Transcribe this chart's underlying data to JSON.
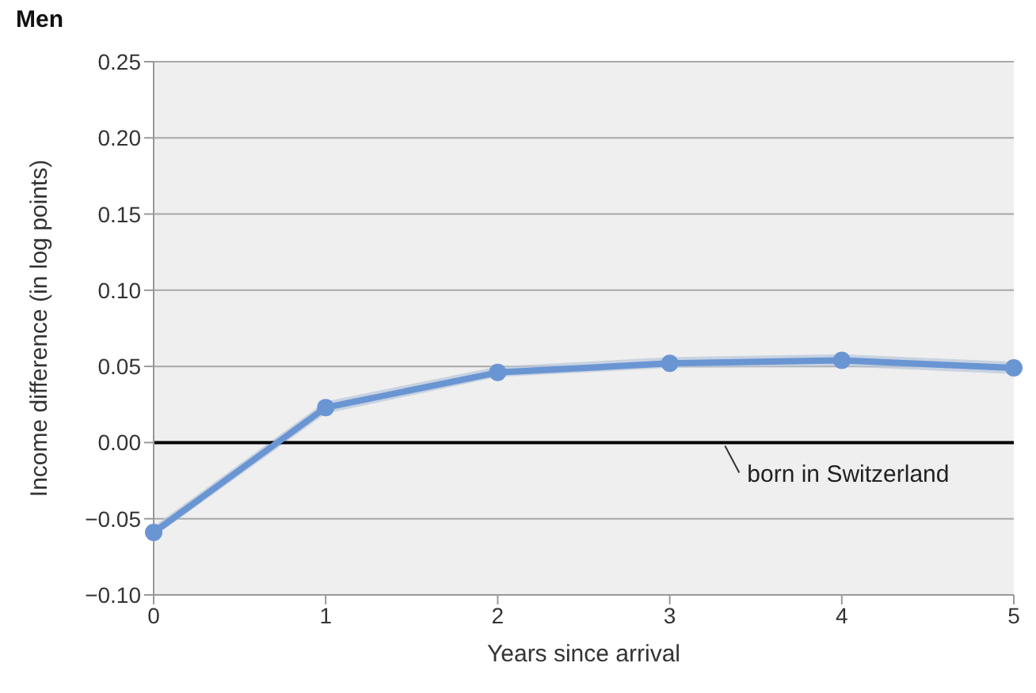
{
  "chart_data": {
    "type": "line",
    "title": "Men",
    "xlabel": "Years since arrival",
    "ylabel": "Income difference (in log points)",
    "categories": [
      "0",
      "1",
      "2",
      "3",
      "4",
      "5"
    ],
    "series": [
      {
        "color": "#6a95d3",
        "values": [
          -0.059,
          0.023,
          0.046,
          0.052,
          0.054,
          0.049
        ],
        "lower": [
          -0.062,
          0.019,
          0.043,
          0.049,
          0.05,
          0.045
        ],
        "upper": [
          -0.055,
          0.027,
          0.05,
          0.056,
          0.058,
          0.053
        ]
      }
    ],
    "ylim": [
      -0.1,
      0.25
    ],
    "yticks": [
      {
        "value": -0.1,
        "label": "−0.10"
      },
      {
        "value": -0.05,
        "label": "−0.05"
      },
      {
        "value": 0,
        "label": "0.00"
      },
      {
        "value": 0.05,
        "label": "0.05"
      },
      {
        "value": 0.1,
        "label": "0.10"
      },
      {
        "value": 0.15,
        "label": "0.15"
      },
      {
        "value": 0.2,
        "label": "0.20"
      },
      {
        "value": 0.25,
        "label": "0.25"
      }
    ],
    "grid": "y",
    "marker": "circle",
    "line_style": "solid",
    "ref_lines": [
      {
        "axis": "y",
        "value": 0,
        "label": "born in Switzerland",
        "color": "#000000"
      }
    ]
  }
}
